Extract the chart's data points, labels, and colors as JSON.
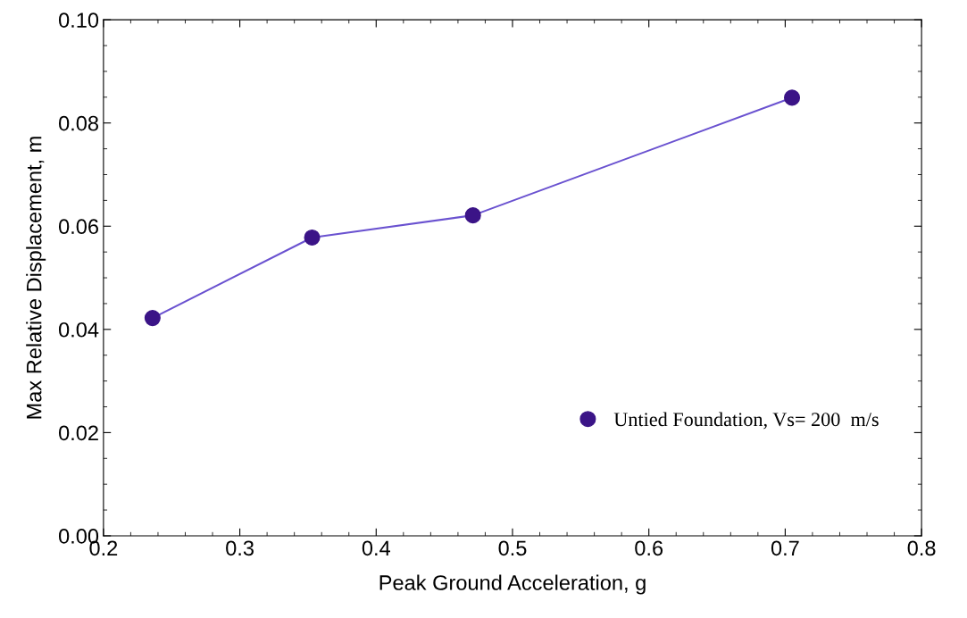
{
  "chart_data": {
    "type": "line",
    "xlabel": "Peak Ground Acceleration, g",
    "ylabel": "Max Relative Displacement, m",
    "x": [
      0.236,
      0.353,
      0.471,
      0.705
    ],
    "series": [
      {
        "name": "Untied Foundation, Vs= 200  m/s",
        "color": "#3b1487",
        "values": [
          0.0422,
          0.0578,
          0.0621,
          0.0849
        ]
      }
    ],
    "xlim": [
      0.2,
      0.8
    ],
    "xticks": [
      0.2,
      0.3,
      0.4,
      0.5,
      0.6,
      0.7,
      0.8
    ],
    "ylim": [
      0.0,
      0.1
    ],
    "yticks": [
      {
        "value": 0,
        "label": "0.00"
      },
      {
        "value": 0.02,
        "label": "0.02"
      },
      {
        "value": 0.04,
        "label": "0.04"
      },
      {
        "value": 0.06,
        "label": "0.06"
      },
      {
        "value": 0.08,
        "label": "0.08"
      },
      {
        "value": 0.1,
        "label": "0.10"
      }
    ],
    "marker": "circle",
    "line_style": "solid",
    "grid": false,
    "legend": "bottom right"
  }
}
